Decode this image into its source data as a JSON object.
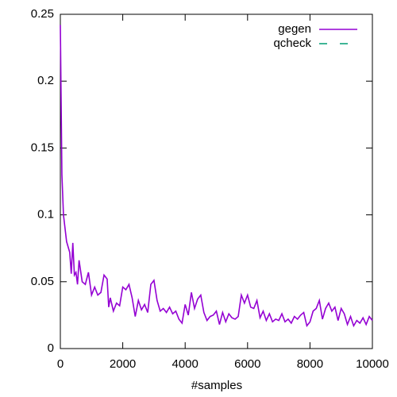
{
  "chart_data": {
    "type": "line",
    "x_label": "#samples",
    "x": [
      0,
      50,
      100,
      200,
      300,
      350,
      400,
      450,
      500,
      550,
      600,
      700,
      800,
      900,
      1000,
      1100,
      1200,
      1300,
      1400,
      1500,
      1550,
      1600,
      1700,
      1800,
      1900,
      2000,
      2100,
      2200,
      2300,
      2400,
      2500,
      2600,
      2700,
      2800,
      2900,
      3000,
      3100,
      3200,
      3300,
      3400,
      3500,
      3600,
      3700,
      3800,
      3900,
      4000,
      4100,
      4200,
      4300,
      4400,
      4500,
      4600,
      4700,
      4800,
      4900,
      5000,
      5100,
      5200,
      5300,
      5400,
      5500,
      5600,
      5700,
      5800,
      5900,
      6000,
      6100,
      6200,
      6300,
      6400,
      6500,
      6600,
      6700,
      6800,
      6900,
      7000,
      7100,
      7200,
      7300,
      7400,
      7500,
      7600,
      7700,
      7800,
      7900,
      8000,
      8100,
      8200,
      8300,
      8400,
      8500,
      8600,
      8700,
      8800,
      8900,
      9000,
      9100,
      9200,
      9300,
      9400,
      9500,
      9600,
      9700,
      9800,
      9900,
      10000
    ],
    "series": [
      {
        "name": "gegen",
        "color": "#9400d3",
        "dash": false,
        "values": [
          0.242,
          0.13,
          0.1,
          0.08,
          0.072,
          0.056,
          0.079,
          0.055,
          0.057,
          0.048,
          0.066,
          0.05,
          0.048,
          0.057,
          0.04,
          0.046,
          0.04,
          0.042,
          0.055,
          0.052,
          0.031,
          0.038,
          0.028,
          0.034,
          0.032,
          0.046,
          0.044,
          0.048,
          0.038,
          0.024,
          0.036,
          0.029,
          0.033,
          0.027,
          0.048,
          0.051,
          0.036,
          0.028,
          0.03,
          0.027,
          0.031,
          0.026,
          0.028,
          0.022,
          0.019,
          0.033,
          0.025,
          0.042,
          0.03,
          0.037,
          0.04,
          0.027,
          0.021,
          0.024,
          0.025,
          0.028,
          0.018,
          0.027,
          0.02,
          0.026,
          0.023,
          0.022,
          0.024,
          0.04,
          0.034,
          0.04,
          0.031,
          0.03,
          0.036,
          0.023,
          0.028,
          0.021,
          0.026,
          0.02,
          0.022,
          0.021,
          0.026,
          0.02,
          0.022,
          0.019,
          0.024,
          0.022,
          0.025,
          0.027,
          0.017,
          0.02,
          0.028,
          0.03,
          0.036,
          0.022,
          0.03,
          0.034,
          0.028,
          0.031,
          0.021,
          0.03,
          0.026,
          0.018,
          0.024,
          0.017,
          0.021,
          0.019,
          0.023,
          0.018,
          0.024,
          0.021
        ]
      },
      {
        "name": "qcheck",
        "color": "#009e73",
        "dash": true,
        "values": [
          null,
          null,
          null,
          null,
          null,
          null,
          null,
          null,
          null,
          null,
          null,
          null,
          null,
          null,
          null,
          null,
          null,
          null,
          null,
          null,
          null,
          null,
          null,
          null,
          null,
          null,
          null,
          null,
          null,
          null,
          null,
          null,
          null,
          null,
          null,
          null,
          null,
          null,
          null,
          null,
          null,
          null,
          null,
          null,
          null,
          null,
          null,
          null,
          null,
          null,
          null,
          null,
          null,
          null,
          null,
          null,
          null,
          null,
          null,
          null,
          null,
          null,
          null,
          null,
          null,
          null,
          null,
          null,
          null,
          null,
          null,
          null,
          null,
          null,
          null,
          null,
          null,
          null,
          null,
          null,
          null,
          null,
          null,
          null,
          null,
          null,
          null,
          null,
          null,
          null,
          null,
          null,
          null,
          null,
          null,
          null,
          null,
          null,
          null,
          null,
          null,
          null,
          null,
          null,
          null,
          null
        ]
      }
    ],
    "xlim": [
      0,
      10000
    ],
    "xticks": [
      0,
      2000,
      4000,
      6000,
      8000,
      10000
    ],
    "ylim": [
      0,
      0.25
    ],
    "yticks": [
      0,
      0.05,
      0.1,
      0.15,
      0.2,
      0.25
    ],
    "legend": "top-right"
  }
}
